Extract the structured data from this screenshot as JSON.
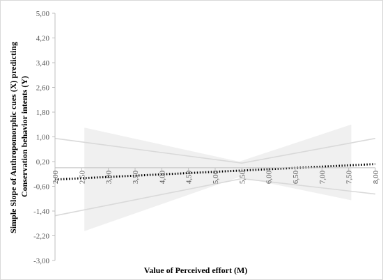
{
  "chart_data": {
    "type": "line",
    "title": "",
    "xlabel": "Value of Perceived effort (M)",
    "ylabel_lines": [
      "Simple Slope of Anthropomorphic cues (X) predicting",
      "Conservation behavior intents (Y)"
    ],
    "xlim": [
      2.0,
      8.0
    ],
    "ylim": [
      -3.0,
      5.0
    ],
    "x_ticks": [
      2.0,
      2.5,
      3.0,
      3.5,
      4.0,
      4.5,
      5.0,
      5.5,
      6.0,
      6.5,
      7.0,
      7.5,
      8.0
    ],
    "x_tick_labels": [
      "2,00",
      "2,50",
      "3,00",
      "3,50",
      "4,00",
      "4,50",
      "5,00",
      "5,50",
      "6,00",
      "6,50",
      "7,00",
      "7,50",
      "8,00"
    ],
    "y_ticks": [
      5.0,
      4.2,
      3.4,
      2.6,
      1.8,
      1.0,
      0.2,
      -0.6,
      -1.4,
      -2.2,
      -3.0
    ],
    "y_tick_labels": [
      "5,00",
      "4,20",
      "3,40",
      "2,60",
      "1,80",
      "1,00",
      "0,20",
      "-0,60",
      "-1,40",
      "-2,20",
      "-3,00"
    ],
    "grid": false,
    "legend": "none",
    "zero_line": 0,
    "series": [
      {
        "role": "simple-slope",
        "style": "dotted",
        "color": "#000000",
        "x": [
          2.0,
          8.0
        ],
        "y": [
          -0.38,
          0.12
        ]
      },
      {
        "role": "upper-ci",
        "style": "solid",
        "color": "#d9d9d9",
        "x": [
          2.0,
          5.5,
          8.0
        ],
        "y": [
          0.95,
          0.15,
          0.95
        ]
      },
      {
        "role": "lower-ci",
        "style": "solid",
        "color": "#d9d9d9",
        "x": [
          2.0,
          5.5,
          8.0
        ],
        "y": [
          -1.55,
          -0.35,
          -0.85
        ]
      }
    ],
    "band": {
      "color": "#f0f0f0",
      "x": [
        2.55,
        5.45,
        7.55
      ],
      "upper": [
        1.3,
        0.2,
        1.4
      ],
      "lower": [
        -2.05,
        -0.3,
        -1.05
      ]
    }
  }
}
